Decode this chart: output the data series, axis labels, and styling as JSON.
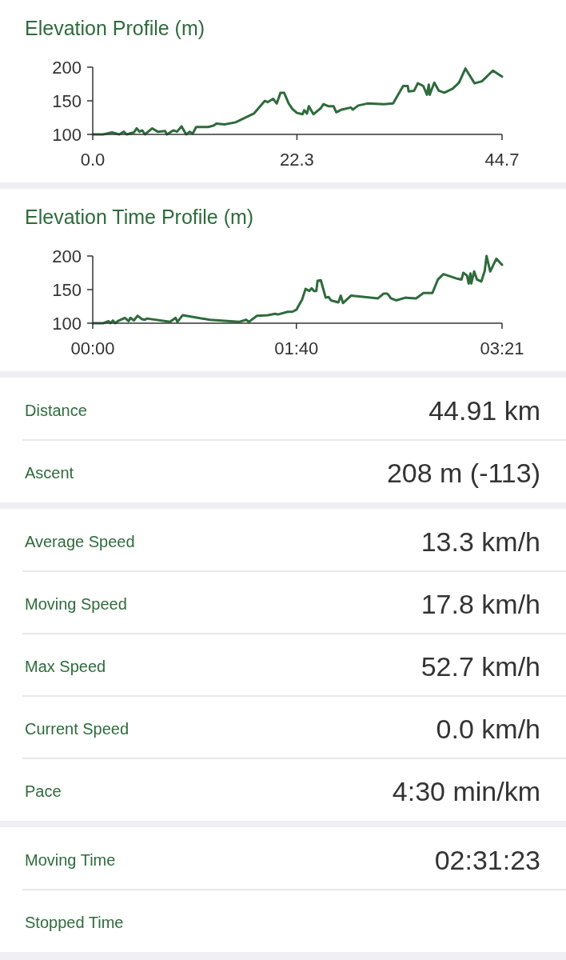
{
  "chart_data": [
    {
      "type": "line",
      "title": "Elevation Profile (m)",
      "x": [
        0,
        1.15,
        2.1,
        2.9,
        3.4,
        3.7,
        4.5,
        4.8,
        5.1,
        5.4,
        5.7,
        6.5,
        7.1,
        7.9,
        8.1,
        8.8,
        9.2,
        9.7,
        10.2,
        10.6,
        10.9,
        11.3,
        12.6,
        13.2,
        13.5,
        14.4,
        15.6,
        17.6,
        18.8,
        19.1,
        19.7,
        20.1,
        20.5,
        20.9,
        21.4,
        21.8,
        22.3,
        22.9,
        23.1,
        23.4,
        23.6,
        24.1,
        24.9,
        25.2,
        25.7,
        26.3,
        26.6,
        27.2,
        28.2,
        28.4,
        29.0,
        30.0,
        31.8,
        32.8,
        33.9,
        34.4,
        34.5,
        35.1,
        35.5,
        36.1,
        36.5,
        36.7,
        36.8,
        37.3,
        37.8,
        38.4,
        39.3,
        40.0,
        40.7,
        41.7,
        42.5,
        43.7,
        44.7
      ],
      "series": [
        {
          "color": "#2e6b3c",
          "values": [
            100,
            100,
            103,
            100,
            104,
            100,
            103,
            109,
            104,
            106,
            100,
            109,
            104,
            105,
            100,
            106,
            104,
            112,
            100,
            104,
            101,
            111,
            111,
            113,
            116,
            115,
            118,
            131,
            150,
            148,
            153,
            146,
            162,
            162,
            146,
            138,
            132,
            130,
            136,
            131,
            142,
            130,
            139,
            145,
            142,
            142,
            133,
            137,
            140,
            137,
            143,
            146,
            145,
            146,
            172,
            172,
            164,
            165,
            176,
            172,
            159,
            174,
            159,
            177,
            165,
            162,
            168,
            177,
            198,
            176,
            179,
            195,
            186
          ]
        }
      ],
      "xlim": [
        0,
        44.7
      ],
      "xticks": [
        {
          "value": 0,
          "label": "0.0"
        },
        22.3,
        44.7
      ],
      "ylim": [
        100,
        200
      ],
      "yticks": [
        100,
        150,
        200
      ],
      "grid": false,
      "marker": "none",
      "line_style": "solid"
    },
    {
      "type": "line",
      "title": "Elevation Time Profile (m)",
      "x": [
        0,
        5.2,
        7.8,
        8.7,
        9.9,
        11,
        12.3,
        15.8,
        17.6,
        18.5,
        20.2,
        22,
        24.2,
        25.6,
        26.5,
        38,
        40.7,
        41.6,
        44.2,
        57.5,
        71.8,
        75.3,
        76.7,
        80.6,
        86,
        89.5,
        90.9,
        95.7,
        98,
        100,
        102.8,
        104.5,
        106.3,
        107.5,
        108.6,
        109.8,
        110.4,
        112,
        114.4,
        115.8,
        117,
        120.6,
        121.8,
        122.9,
        126.8,
        140.1,
        142.8,
        144.6,
        145.5,
        146.4,
        149,
        153.5,
        158.8,
        162.4,
        166.8,
        169.5,
        172.2,
        179.3,
        181.1,
        182,
        183.8,
        184.6,
        185.5,
        185.9,
        187.3,
        188.7,
        190.8,
        192.5,
        193.4,
        195.2,
        198.2,
        201
      ],
      "series": [
        {
          "color": "#2e6b3c",
          "values": [
            100,
            100,
            103,
            100,
            104,
            100,
            103,
            108,
            103,
            108,
            104,
            111,
            106,
            105,
            107,
            102,
            108,
            102,
            112,
            105,
            102,
            105,
            102,
            111,
            112,
            114,
            113,
            117,
            117,
            120,
            135,
            151,
            148,
            152,
            148,
            148,
            163,
            164,
            138,
            139,
            134,
            131,
            141,
            130,
            141,
            137,
            144,
            144,
            141,
            137,
            134,
            138,
            137,
            145,
            145,
            165,
            173,
            166,
            165,
            175,
            171,
            159,
            174,
            159,
            177,
            165,
            162,
            178,
            200,
            177,
            196,
            187
          ]
        }
      ],
      "xlim": [
        0,
        201
      ],
      "xticks": [
        {
          "value": 0,
          "label": "00:00"
        },
        {
          "value": 100,
          "label": "01:40"
        },
        {
          "value": 201,
          "label": "03:21"
        }
      ],
      "ylim": [
        100,
        200
      ],
      "yticks": [
        100,
        150,
        200
      ],
      "grid": false,
      "marker": "none",
      "line_style": "solid"
    },
    {
      "type": "other",
      "categories": [
        "Distance",
        "Ascent"
      ],
      "value_labels": [
        "44.91 km",
        "208 m (-113)"
      ]
    },
    {
      "type": "other",
      "categories": [
        "Average Speed",
        "Moving Speed",
        "Max Speed",
        "Current Speed",
        "Pace"
      ],
      "value_labels": [
        "13.3 km/h",
        "17.8 km/h",
        "52.7 km/h",
        "0.0 km/h",
        "4:30 min/km"
      ]
    },
    {
      "type": "other",
      "categories": [
        "Moving Time",
        "Stopped Time"
      ],
      "value_labels": [
        "02:31:23",
        null
      ]
    }
  ]
}
